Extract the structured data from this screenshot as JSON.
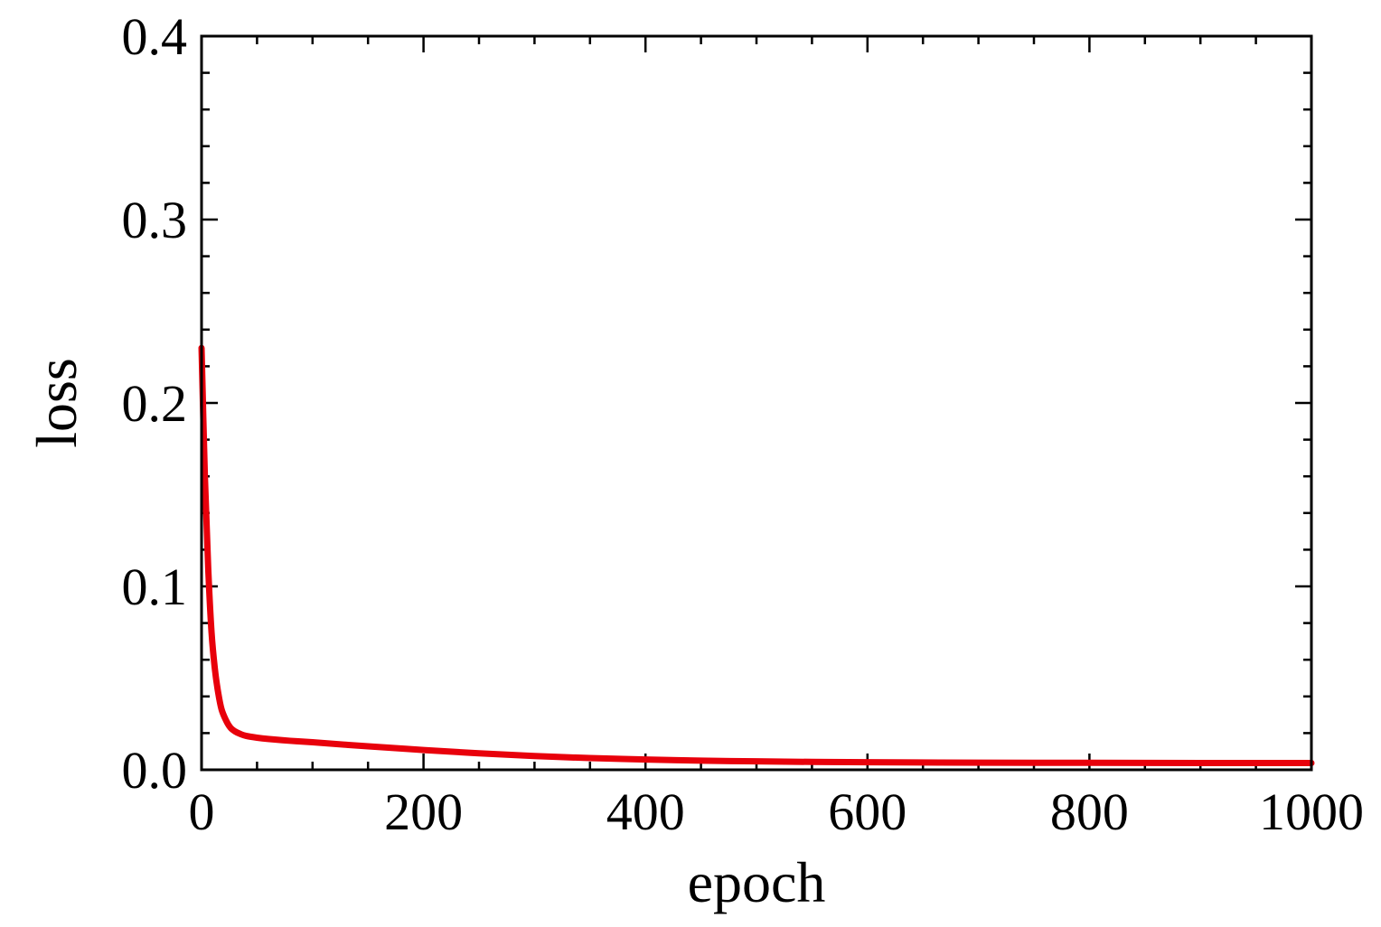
{
  "chart_data": {
    "type": "line",
    "title": "",
    "xlabel": "epoch",
    "ylabel": "loss",
    "xlim": [
      0,
      1000
    ],
    "ylim": [
      0,
      0.4
    ],
    "xticks": [
      0,
      200,
      400,
      600,
      800,
      1000
    ],
    "xtick_labels": [
      "0",
      "200",
      "400",
      "600",
      "800",
      "1000"
    ],
    "yticks": [
      0,
      0.1,
      0.2,
      0.3,
      0.4
    ],
    "ytick_labels": [
      "0.0",
      "0.1",
      "0.2",
      "0.3",
      "0.4"
    ],
    "grid": false,
    "series": [
      {
        "color": "#e8000b",
        "x": [
          0,
          3,
          6,
          9,
          12,
          15,
          18,
          22,
          26,
          30,
          35,
          40,
          50,
          60,
          80,
          100,
          150,
          200,
          250,
          300,
          350,
          400,
          450,
          500,
          550,
          600,
          700,
          800,
          900,
          1000
        ],
        "y": [
          0.23,
          0.16,
          0.11,
          0.075,
          0.055,
          0.042,
          0.033,
          0.027,
          0.023,
          0.021,
          0.0195,
          0.0185,
          0.0175,
          0.0168,
          0.0158,
          0.015,
          0.0128,
          0.0108,
          0.009,
          0.0075,
          0.0064,
          0.0056,
          0.005,
          0.0046,
          0.0043,
          0.0041,
          0.0039,
          0.0038,
          0.0037,
          0.0037
        ]
      }
    ]
  }
}
